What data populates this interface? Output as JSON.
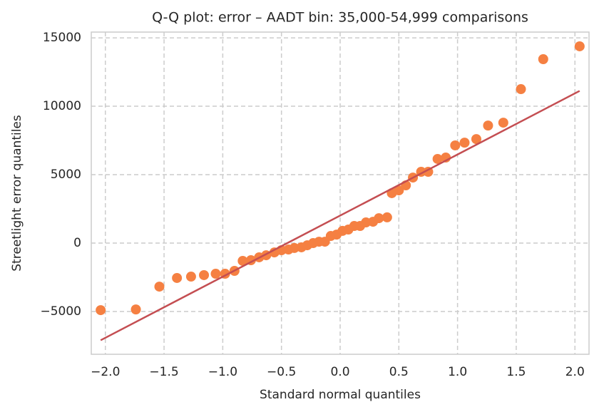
{
  "chart_data": {
    "type": "scatter",
    "title": "Q-Q plot: error – AADT bin: 35,000-54,999 comparisons",
    "x_label": "Standard normal quantiles",
    "y_label": "Streetlight error quantiles",
    "xlim": [
      -2.12,
      2.12
    ],
    "ylim": [
      -8125,
      15420
    ],
    "xticks": [
      {
        "value": -2,
        "label": "−2.0"
      },
      {
        "value": -1.5,
        "label": "−1.5"
      },
      {
        "value": -1,
        "label": "−1.0"
      },
      {
        "value": -0.5,
        "label": "−0.5"
      },
      {
        "value": 0,
        "label": "0.0"
      },
      0.5,
      {
        "value": 1,
        "label": "1.0"
      },
      1.5,
      {
        "value": 2,
        "label": "2.0"
      }
    ],
    "yticks": [
      {
        "value": -5000,
        "label": "−5000"
      },
      0,
      5000,
      10000,
      15000
    ],
    "grid": true,
    "series": [
      {
        "type": "scatter",
        "color": "#f58042",
        "x": [
          -2.04,
          -1.74,
          -1.54,
          -1.39,
          -1.27,
          -1.16,
          -1.06,
          -0.98,
          -0.9,
          -0.83,
          -0.76,
          -0.69,
          -0.63,
          -0.56,
          -0.5,
          -0.44,
          -0.39,
          -0.33,
          -0.28,
          -0.23,
          -0.18,
          -0.13,
          -0.08,
          -0.03,
          0.02,
          0.07,
          0.12,
          0.17,
          0.22,
          0.28,
          0.33,
          0.4,
          0.44,
          0.5,
          0.56,
          0.62,
          0.69,
          0.75,
          0.83,
          0.9,
          0.98,
          1.06,
          1.16,
          1.26,
          1.39,
          1.54,
          1.73,
          2.04
        ],
        "values": [
          -4900,
          -4850,
          -3180,
          -2550,
          -2450,
          -2340,
          -2240,
          -2240,
          -2030,
          -1300,
          -1250,
          -1040,
          -890,
          -680,
          -520,
          -470,
          -360,
          -310,
          -160,
          0,
          100,
          100,
          520,
          620,
          890,
          990,
          1250,
          1250,
          1510,
          1560,
          1820,
          1880,
          3650,
          3850,
          4220,
          4790,
          5210,
          5210,
          6150,
          6250,
          7140,
          7340,
          7600,
          8590,
          8800,
          11250,
          13440,
          14380
        ]
      },
      {
        "type": "line",
        "color": "#c44e52",
        "x": [
          -2.04,
          2.04
        ],
        "values": [
          -7100,
          11120
        ]
      }
    ]
  }
}
